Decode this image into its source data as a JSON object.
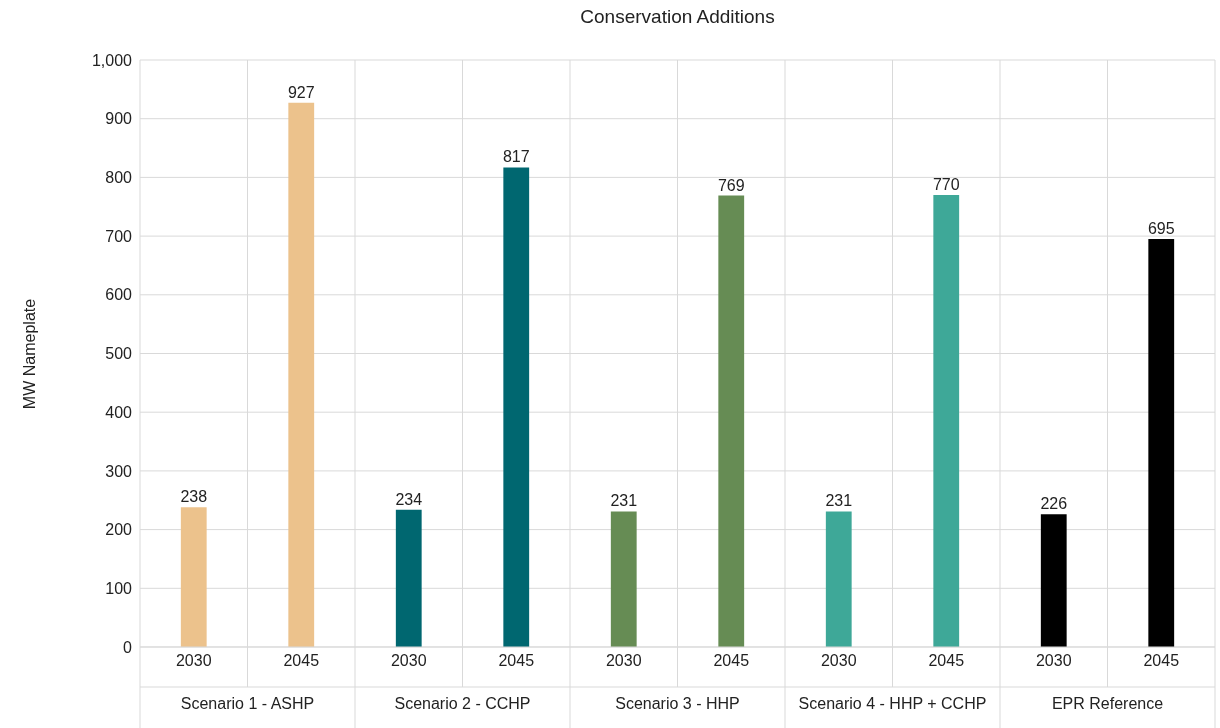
{
  "chart_data": {
    "type": "bar",
    "title": "Conservation Additions",
    "ylabel": "MW Nameplate",
    "categories": [
      "2030",
      "2045",
      "2030",
      "2045",
      "2030",
      "2045",
      "2030",
      "2045",
      "2030",
      "2045"
    ],
    "values": [
      238,
      927,
      234,
      817,
      231,
      769,
      231,
      770,
      226,
      695
    ],
    "colors": [
      "#ecc28c",
      "#ecc28c",
      "#006770",
      "#006770",
      "#668c54",
      "#668c54",
      "#3ea898",
      "#3ea898",
      "#000000",
      "#000000"
    ],
    "annotations": [
      "Scenario 1 - ASHP",
      "Scenario 2 - CCHP",
      "Scenario 3 - HHP",
      "Scenario 4 - HHP + CCHP",
      "EPR Reference"
    ],
    "ylim": [
      0,
      1000
    ],
    "yticks": [
      0,
      100,
      200,
      300,
      400,
      500,
      600,
      700,
      800,
      900,
      {
        "value": 1000,
        "label": "1,000"
      }
    ],
    "grid": true,
    "data_labels": true
  }
}
